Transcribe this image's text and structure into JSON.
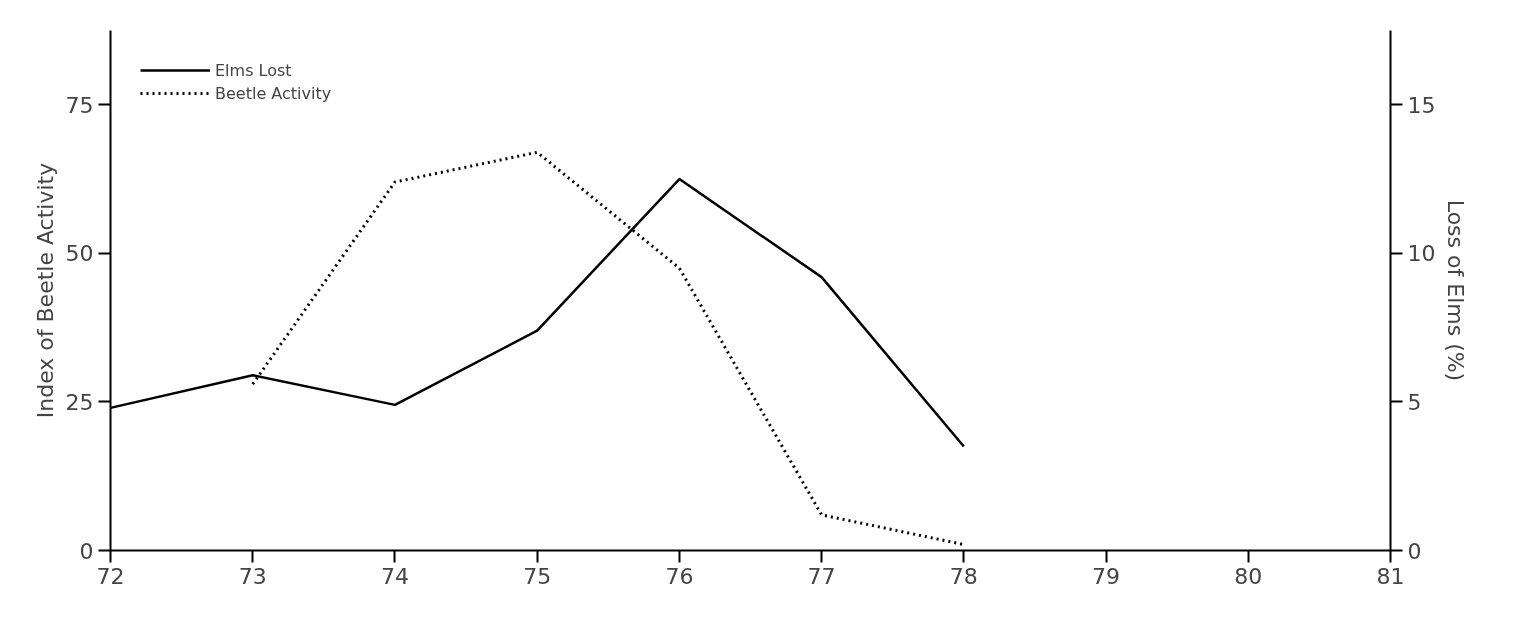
{
  "chart_data": {
    "type": "line",
    "ylabel": "Index of Beetle Activity",
    "y2label": "Loss of Elms (%)",
    "x": [
      72,
      73,
      74,
      75,
      76,
      77,
      78
    ],
    "series": [
      {
        "name": "Elms Lost",
        "color": "#000000",
        "axis": "y2",
        "line_style": "solid",
        "values": [
          4.8,
          5.9,
          4.9,
          7.4,
          12.5,
          9.2,
          3.5
        ]
      },
      {
        "name": "Beetle Activity",
        "color": "#000000",
        "axis": "y",
        "line_style": "dotted",
        "values": [
          null,
          28,
          62,
          67,
          47.5,
          6,
          1
        ]
      }
    ],
    "xlim": [
      72,
      81
    ],
    "xticks": [
      72,
      73,
      74,
      75,
      76,
      77,
      78,
      79,
      80,
      81
    ],
    "ylim": [
      0,
      87.5
    ],
    "yticks": [
      0,
      25,
      50,
      75
    ],
    "y2lim": [
      0,
      17.5
    ],
    "y2ticks": [
      0,
      5,
      10,
      15
    ],
    "grid": false,
    "legend": "top left",
    "marker": "none"
  }
}
